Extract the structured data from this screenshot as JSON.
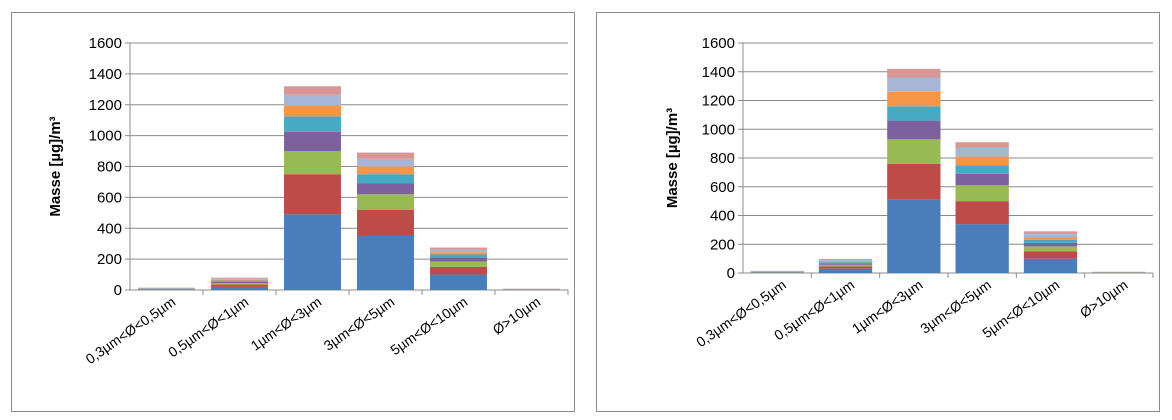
{
  "chart_data": [
    {
      "type": "bar",
      "stacked": true,
      "ylabel": "Masse [µg]/m³",
      "ylim": [
        0,
        1600
      ],
      "yticks": [
        "0",
        "200",
        "400",
        "600",
        "800",
        "1000",
        "1200",
        "1400",
        "1600"
      ],
      "grid": true,
      "categories": [
        "0,3µm<Ø<0,5µm",
        "0,5µm<Ø<1µm",
        "1µm<Ø<3µm",
        "3µm<Ø<5µm",
        "5µm<Ø<10µm",
        "Ø>10µm"
      ],
      "series": [
        {
          "color": "#4a7ebb",
          "values": [
            3,
            20,
            490,
            350,
            100,
            2
          ]
        },
        {
          "color": "#be4b48",
          "values": [
            2,
            15,
            260,
            170,
            50,
            1
          ]
        },
        {
          "color": "#98b954",
          "values": [
            2,
            10,
            150,
            100,
            35,
            1
          ]
        },
        {
          "color": "#7d60a0",
          "values": [
            2,
            8,
            125,
            70,
            25,
            1
          ]
        },
        {
          "color": "#46aac5",
          "values": [
            2,
            8,
            100,
            60,
            20,
            1
          ]
        },
        {
          "color": "#f79646",
          "values": [
            1,
            6,
            70,
            50,
            15,
            1
          ]
        },
        {
          "color": "#a5b6d7",
          "values": [
            1,
            6,
            70,
            50,
            15,
            1
          ]
        },
        {
          "color": "#d99694",
          "values": [
            2,
            7,
            55,
            40,
            15,
            1
          ]
        }
      ]
    },
    {
      "type": "bar",
      "stacked": true,
      "ylabel": "Masse [µg]/m³",
      "ylim": [
        0,
        1600
      ],
      "yticks": [
        "0",
        "200",
        "400",
        "600",
        "800",
        "1000",
        "1200",
        "1400",
        "1600"
      ],
      "grid": true,
      "categories": [
        "0,3µm<Ø<0,5µm",
        "0,5µm<Ø<1µm",
        "1µm<Ø<3µm",
        "3µm<Ø<5µm",
        "5µm<Ø<10µm",
        "Ø>10µm"
      ],
      "series": [
        {
          "color": "#4a7ebb",
          "values": [
            3,
            30,
            510,
            340,
            100,
            2
          ]
        },
        {
          "color": "#be4b48",
          "values": [
            2,
            15,
            250,
            160,
            50,
            1
          ]
        },
        {
          "color": "#98b954",
          "values": [
            2,
            12,
            170,
            110,
            35,
            1
          ]
        },
        {
          "color": "#7d60a0",
          "values": [
            2,
            10,
            130,
            80,
            25,
            1
          ]
        },
        {
          "color": "#46aac5",
          "values": [
            2,
            8,
            100,
            60,
            20,
            1
          ]
        },
        {
          "color": "#f79646",
          "values": [
            1,
            8,
            100,
            60,
            20,
            1
          ]
        },
        {
          "color": "#a5b6d7",
          "values": [
            1,
            7,
            100,
            60,
            20,
            1
          ]
        },
        {
          "color": "#d99694",
          "values": [
            2,
            8,
            60,
            40,
            20,
            1
          ]
        }
      ]
    }
  ]
}
